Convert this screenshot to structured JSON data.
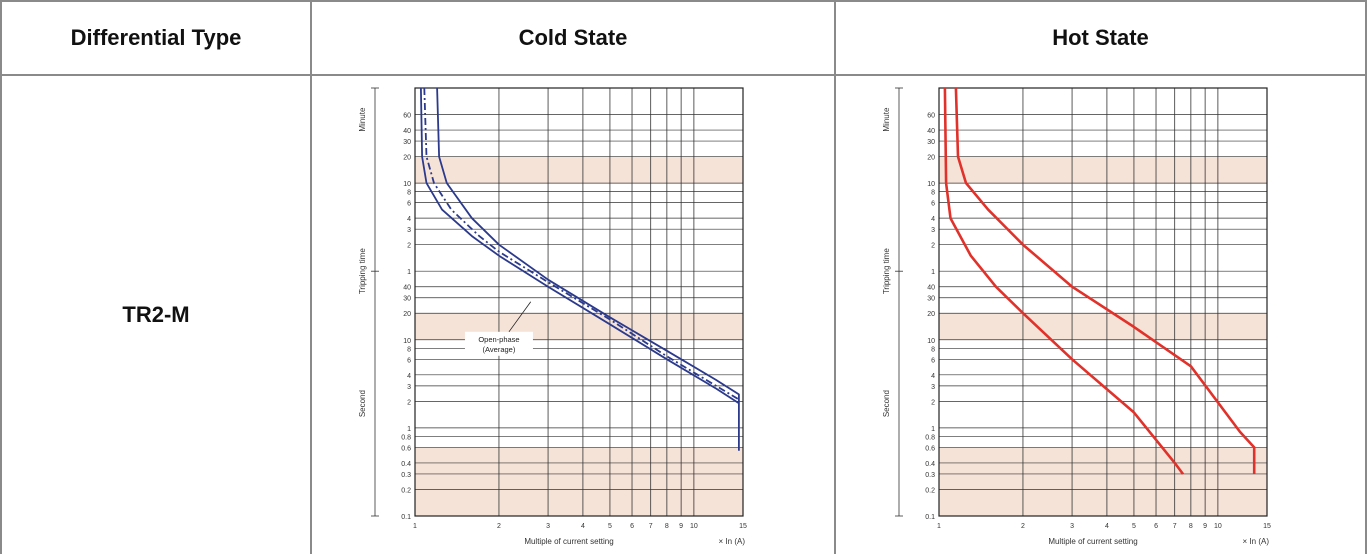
{
  "table": {
    "headers": [
      "Differential Type",
      "Cold State",
      "Hot State"
    ],
    "row_label": "TR2-M"
  },
  "colors": {
    "cold_curve": "#2b3a8c",
    "hot_curve": "#e0322a",
    "band_fill": "#f6e3d8",
    "grid": "#333333"
  },
  "chart_data": [
    {
      "type": "line",
      "title": "Cold State",
      "xlabel": "Multiple of current setting",
      "xunit": "× In (A)",
      "ylabel": "Tripping time",
      "y_groups": [
        "Minute",
        "Second"
      ],
      "xscale": "log",
      "yscale": "log",
      "xlim": [
        1,
        15
      ],
      "ylim": [
        0.1,
        7200
      ],
      "x_ticks": [
        "1",
        "2",
        "3",
        "4",
        "5",
        "6",
        "7",
        "8",
        "9",
        "10",
        "15"
      ],
      "y_ticks_minute": [
        "60",
        "40",
        "30",
        "20",
        "10",
        "8",
        "6",
        "4",
        "3",
        "2",
        "1"
      ],
      "y_ticks_second": [
        "60",
        "40",
        "30",
        "20",
        "10",
        "8",
        "6",
        "4",
        "3",
        "2",
        "1",
        "0.8",
        "0.6",
        "0.4",
        "0.3",
        "0.2",
        "0.1"
      ],
      "annotation": [
        "Open-phase",
        "(Average)"
      ],
      "series": [
        {
          "style": "solid",
          "points": [
            [
              1.05,
              7200
            ],
            [
              1.06,
              1200
            ],
            [
              1.1,
              600
            ],
            [
              1.25,
              300
            ],
            [
              1.6,
              150
            ],
            [
              2,
              90
            ],
            [
              3,
              40
            ],
            [
              5,
              15
            ],
            [
              8,
              6
            ],
            [
              12,
              2.8
            ],
            [
              14.5,
              1.9
            ]
          ]
        },
        {
          "style": "solid",
          "points": [
            [
              1.2,
              7200
            ],
            [
              1.22,
              1200
            ],
            [
              1.3,
              600
            ],
            [
              1.6,
              240
            ],
            [
              2,
              120
            ],
            [
              3,
              48
            ],
            [
              5,
              18
            ],
            [
              8,
              7.5
            ],
            [
              12,
              3.5
            ],
            [
              14.5,
              2.4
            ],
            [
              14.5,
              0.55
            ]
          ]
        },
        {
          "style": "dashdot",
          "points": [
            [
              1.08,
              7200
            ],
            [
              1.1,
              1200
            ],
            [
              1.17,
              600
            ],
            [
              1.35,
              300
            ],
            [
              1.7,
              150
            ],
            [
              2,
              100
            ],
            [
              3,
              45
            ],
            [
              5,
              17
            ],
            [
              8,
              6.5
            ],
            [
              12,
              3
            ],
            [
              14.5,
              2.1
            ]
          ]
        }
      ]
    },
    {
      "type": "line",
      "title": "Hot State",
      "xlabel": "Multiple of current setting",
      "xunit": "× In (A)",
      "ylabel": "Tripping time",
      "y_groups": [
        "Minute",
        "Second"
      ],
      "xscale": "log",
      "yscale": "log",
      "xlim": [
        1,
        15
      ],
      "ylim": [
        0.1,
        7200
      ],
      "x_ticks": [
        "1",
        "2",
        "3",
        "4",
        "5",
        "6",
        "7",
        "8",
        "9",
        "10",
        "15"
      ],
      "y_ticks_minute": [
        "60",
        "40",
        "30",
        "20",
        "10",
        "8",
        "6",
        "4",
        "3",
        "2",
        "1"
      ],
      "y_ticks_second": [
        "60",
        "40",
        "30",
        "20",
        "10",
        "8",
        "6",
        "4",
        "3",
        "2",
        "1",
        "0.8",
        "0.6",
        "0.4",
        "0.3",
        "0.2",
        "0.1"
      ],
      "annotation": [],
      "series": [
        {
          "style": "solid",
          "points": [
            [
              1.05,
              7200
            ],
            [
              1.06,
              600
            ],
            [
              1.1,
              240
            ],
            [
              1.3,
              90
            ],
            [
              1.6,
              40
            ],
            [
              2,
              20
            ],
            [
              3,
              6
            ],
            [
              5,
              1.5
            ],
            [
              7,
              0.4
            ],
            [
              7.5,
              0.3
            ]
          ]
        },
        {
          "style": "solid",
          "points": [
            [
              1.15,
              7200
            ],
            [
              1.17,
              1200
            ],
            [
              1.25,
              600
            ],
            [
              1.5,
              300
            ],
            [
              2,
              120
            ],
            [
              3,
              40
            ],
            [
              5,
              14
            ],
            [
              8,
              5
            ],
            [
              12,
              0.9
            ],
            [
              13.5,
              0.6
            ],
            [
              13.5,
              0.3
            ]
          ]
        }
      ]
    }
  ]
}
